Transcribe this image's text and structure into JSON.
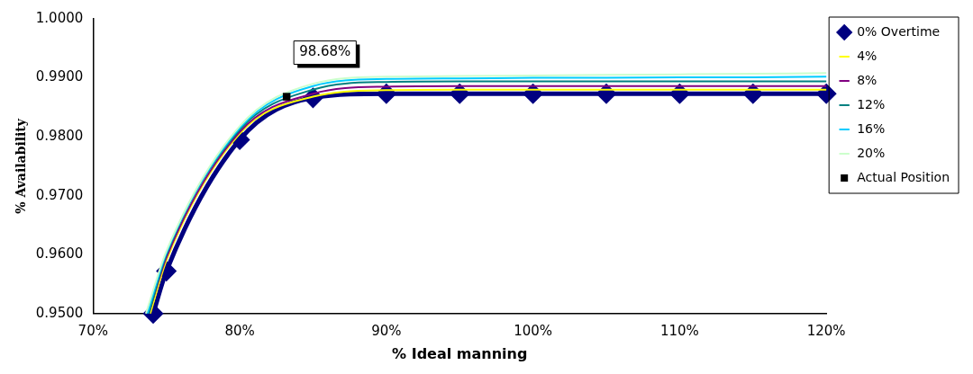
{
  "chart_data": {
    "type": "line",
    "xlabel": "% Ideal manning",
    "ylabel": "% Availability",
    "xlim": [
      70,
      120
    ],
    "xticks": [
      {
        "value": 70,
        "label": "70%"
      },
      {
        "value": 80,
        "label": "80%"
      },
      {
        "value": 90,
        "label": "90%"
      },
      {
        "value": 100,
        "label": "100%"
      },
      {
        "value": 110,
        "label": "110%"
      },
      {
        "value": 120,
        "label": "120%"
      }
    ],
    "ylim": [
      0.95,
      1.0
    ],
    "yticks": [
      {
        "value": 0.95,
        "label": "0.9500"
      },
      {
        "value": 0.96,
        "label": "0.9600"
      },
      {
        "value": 0.97,
        "label": "0.9700"
      },
      {
        "value": 0.98,
        "label": "0.9800"
      },
      {
        "value": 0.99,
        "label": "0.9900"
      },
      {
        "value": 1.0,
        "label": "1.0000"
      }
    ],
    "grid": false,
    "legend": "right",
    "series": [
      {
        "name": "0% Overtime",
        "color": "#000080",
        "marker": "diamond",
        "x": [
          74.1,
          75,
          80,
          85,
          90,
          95,
          100,
          105,
          110,
          115,
          120
        ],
        "values": [
          0.95,
          0.9572,
          0.9795,
          0.9866,
          0.9873,
          0.9873,
          0.9873,
          0.9873,
          0.9873,
          0.9873,
          0.9873
        ]
      },
      {
        "name": "4%",
        "color": "#ffff00",
        "marker": "none",
        "x": [
          73.9,
          75,
          80,
          85,
          90,
          95,
          100,
          105,
          110,
          115,
          120
        ],
        "values": [
          0.95,
          0.959,
          0.9805,
          0.9868,
          0.9879,
          0.988,
          0.988,
          0.988,
          0.988,
          0.988,
          0.988
        ]
      },
      {
        "name": "8%",
        "color": "#800080",
        "marker": "none",
        "x": [
          73.8,
          75,
          80,
          85,
          90,
          95,
          100,
          105,
          110,
          115,
          120
        ],
        "values": [
          0.95,
          0.9595,
          0.9808,
          0.9873,
          0.9885,
          0.9886,
          0.9886,
          0.9886,
          0.9886,
          0.9886,
          0.9886
        ]
      },
      {
        "name": "12%",
        "color": "#008080",
        "marker": "none",
        "x": [
          73.8,
          75,
          80,
          85,
          90,
          95,
          100,
          105,
          110,
          115,
          120
        ],
        "values": [
          0.95,
          0.96,
          0.9812,
          0.988,
          0.9893,
          0.9894,
          0.9894,
          0.9894,
          0.9894,
          0.9894,
          0.9894
        ]
      },
      {
        "name": "16%",
        "color": "#00ccff",
        "marker": "none",
        "x": [
          73.7,
          75,
          80,
          85,
          90,
          95,
          100,
          105,
          110,
          115,
          120
        ],
        "values": [
          0.95,
          0.9603,
          0.9815,
          0.9886,
          0.9898,
          0.9899,
          0.99,
          0.99,
          0.9901,
          0.9901,
          0.9902
        ]
      },
      {
        "name": "20%",
        "color": "#ccffcc",
        "marker": "none",
        "x": [
          73.6,
          75,
          80,
          85,
          90,
          95,
          100,
          105,
          110,
          115,
          120
        ],
        "values": [
          0.95,
          0.9606,
          0.9818,
          0.989,
          0.9902,
          0.9903,
          0.9904,
          0.9905,
          0.9906,
          0.9907,
          0.9908
        ]
      },
      {
        "name": "Actual Position",
        "type": "scatter",
        "color": "#000000",
        "marker": "square",
        "x": [
          83.2
        ],
        "values": [
          0.9868
        ],
        "value_labels": [
          "98.68%"
        ]
      }
    ]
  }
}
